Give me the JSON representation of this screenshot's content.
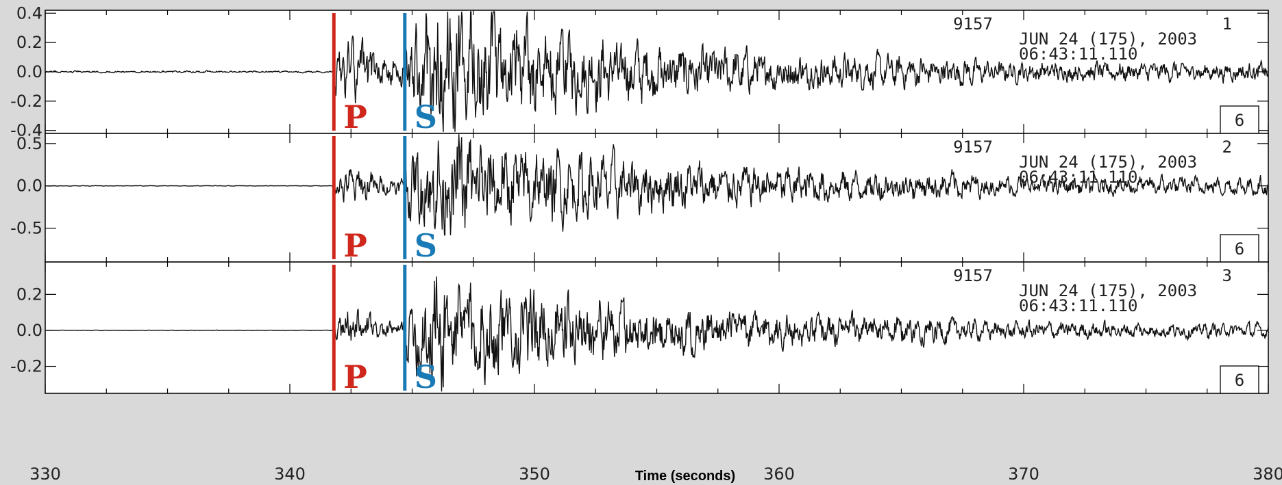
{
  "colors": {
    "p_pick": "#d0271d",
    "s_pick": "#1a7ab5",
    "trace": "#111111",
    "background": "#d9d9d9",
    "panel": "#ffffff"
  },
  "chart_data": {
    "type": "line",
    "xlabel": "Time (seconds)",
    "xlim": [
      330,
      380
    ],
    "x_ticks": [
      330,
      340,
      350,
      360,
      370,
      380
    ],
    "p_arrival": 341.8,
    "s_arrival": 344.7,
    "phase_labels": {
      "p": "P",
      "s": "S"
    },
    "panels": [
      {
        "ylim": [
          -0.42,
          0.42
        ],
        "y_ticks": [
          0.4,
          0.2,
          0.0,
          -0.2,
          -0.4
        ],
        "y_tick_labels": [
          "0.4",
          "0.2",
          "0.0",
          "-0.2",
          "-0.4"
        ],
        "info": {
          "station": "9157",
          "component": "1",
          "date": "JUN 24 (175), 2003",
          "time": "06:43:11.110"
        },
        "box_label": "6",
        "series": {
          "seed": 1,
          "pre_amp": 0.02,
          "p_amp": 0.14,
          "s_peak": 0.33,
          "coda_amp": 0.05,
          "decay": 7
        }
      },
      {
        "ylim": [
          -0.9,
          0.62
        ],
        "y_ticks": [
          0.5,
          0.0,
          -0.5
        ],
        "y_tick_labels": [
          "0.5",
          "0.0",
          "-0.5"
        ],
        "info": {
          "station": "9157",
          "component": "2",
          "date": "JUN 24 (175), 2003",
          "time": "06:43:11.110"
        },
        "box_label": "6",
        "series": {
          "seed": 2,
          "pre_amp": 0.01,
          "p_amp": 0.15,
          "s_peak": 0.45,
          "coda_amp": 0.08,
          "decay": 8
        }
      },
      {
        "ylim": [
          -0.35,
          0.38
        ],
        "y_ticks": [
          0.2,
          0.0,
          -0.2
        ],
        "y_tick_labels": [
          "0.2",
          "0.0",
          "-0.2"
        ],
        "info": {
          "station": "9157",
          "component": "3",
          "date": "JUN 24 (175), 2003",
          "time": "06:43:11.110"
        },
        "box_label": "6",
        "series": {
          "seed": 3,
          "pre_amp": 0.005,
          "p_amp": 0.07,
          "s_peak": 0.24,
          "coda_amp": 0.03,
          "decay": 8
        }
      }
    ]
  }
}
